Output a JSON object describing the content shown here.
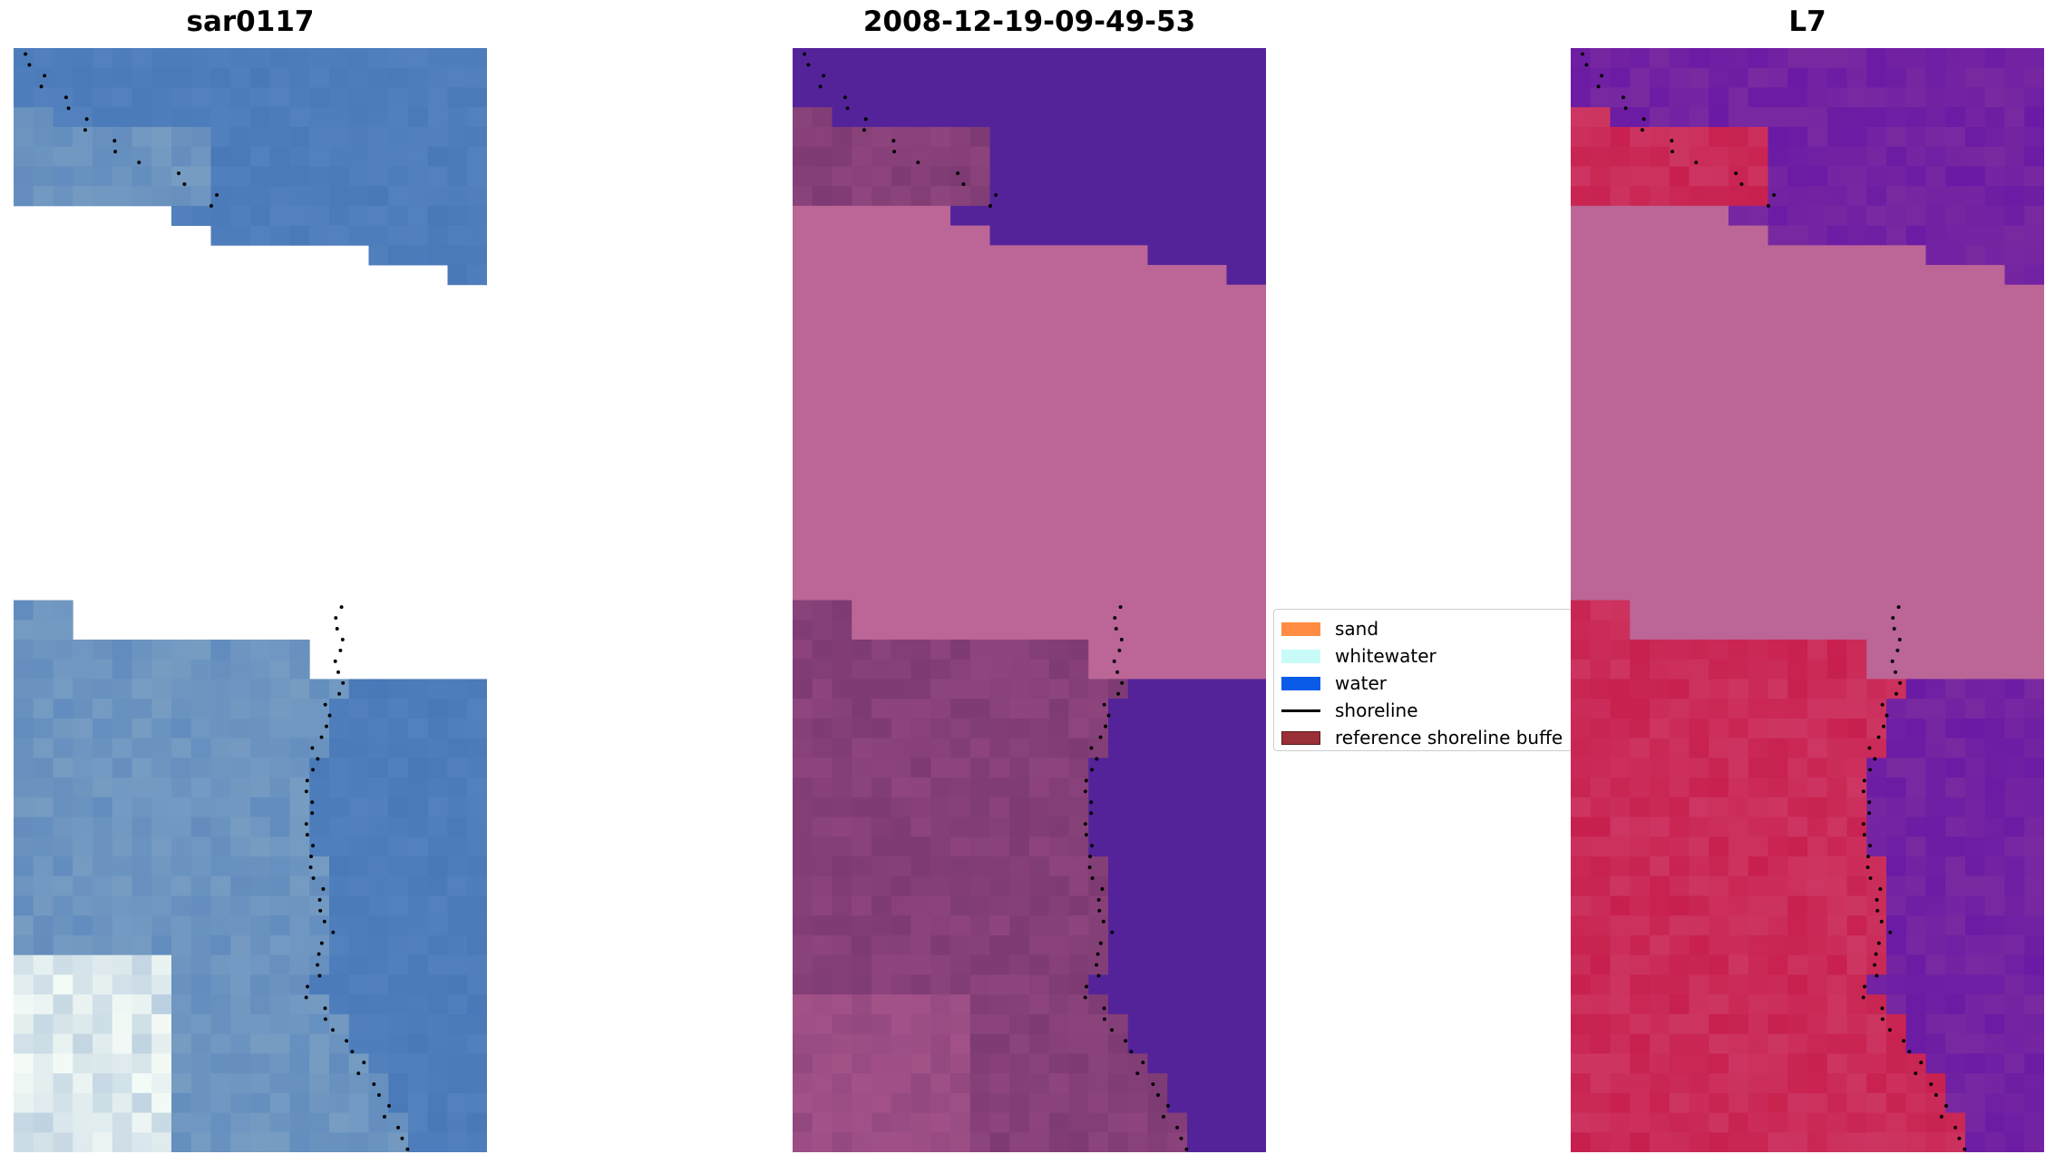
{
  "panels": [
    {
      "id": "p1",
      "title": "sar0117",
      "palette": "rgb"
    },
    {
      "id": "p2",
      "title": "2008-12-19-09-49-53",
      "palette": "class"
    },
    {
      "id": "p3",
      "title": "L7",
      "palette": "index"
    }
  ],
  "legend": {
    "items": [
      {
        "label": "sand",
        "color": "#ff8c42",
        "kind": "patch"
      },
      {
        "label": "whitewater",
        "color": "#c8fbf8",
        "kind": "patch"
      },
      {
        "label": "water",
        "color": "#0a5ce8",
        "kind": "patch"
      },
      {
        "label": "shoreline",
        "color": "#000000",
        "kind": "line"
      },
      {
        "label": "reference shoreline buffe",
        "color": "#9a2f38",
        "kind": "buffer"
      }
    ]
  },
  "colors": {
    "background": "#ffffff",
    "nodata_band": "#bb6696",
    "water_class": "#54239a",
    "land_class": "#7d3a73",
    "rgb_water": "#4a79b8",
    "index_land": "#c8204e",
    "index_water": "#7a2aa0"
  }
}
